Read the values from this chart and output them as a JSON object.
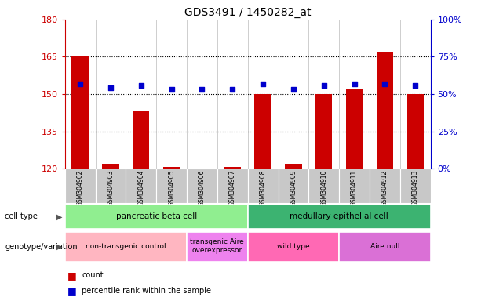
{
  "title": "GDS3491 / 1450282_at",
  "samples": [
    "GSM304902",
    "GSM304903",
    "GSM304904",
    "GSM304905",
    "GSM304906",
    "GSM304907",
    "GSM304908",
    "GSM304909",
    "GSM304910",
    "GSM304911",
    "GSM304912",
    "GSM304913"
  ],
  "count_values": [
    165,
    122,
    143,
    120.5,
    120,
    120.5,
    150,
    122,
    150,
    152,
    167,
    150
  ],
  "percentile_values": [
    57,
    54,
    56,
    53,
    53,
    53,
    57,
    53,
    56,
    57,
    57,
    56
  ],
  "ymin": 120,
  "ymax": 180,
  "y_ticks": [
    120,
    135,
    150,
    165,
    180
  ],
  "dotted_lines": [
    135,
    150,
    165
  ],
  "cell_type_groups": [
    {
      "label": "pancreatic beta cell",
      "start": 0,
      "end": 6,
      "color": "#90EE90"
    },
    {
      "label": "medullary epithelial cell",
      "start": 6,
      "end": 12,
      "color": "#3CB371"
    }
  ],
  "genotype_groups": [
    {
      "label": "non-transgenic control",
      "start": 0,
      "end": 4,
      "color": "#FFB6C1"
    },
    {
      "label": "transgenic Aire\noverexpressor",
      "start": 4,
      "end": 6,
      "color": "#EE82EE"
    },
    {
      "label": "wild type",
      "start": 6,
      "end": 9,
      "color": "#FF69B4"
    },
    {
      "label": "Aire null",
      "start": 9,
      "end": 12,
      "color": "#DA70D6"
    }
  ],
  "bar_color": "#CC0000",
  "dot_color": "#0000CC",
  "left_color": "#CC0000",
  "right_color": "#0000CC",
  "tick_bg": "#C8C8C8"
}
